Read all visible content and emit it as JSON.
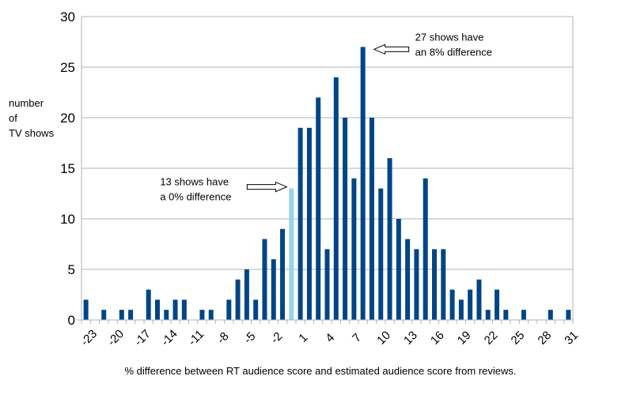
{
  "chart_data": {
    "type": "bar",
    "title": "",
    "ylabel": [
      "number",
      "of",
      "TV shows"
    ],
    "xlabel": "% difference between RT audience score and estimated audience score from reviews.",
    "ylim": [
      0,
      30
    ],
    "yticks": [
      0,
      5,
      10,
      15,
      20,
      25,
      30
    ],
    "grid": true,
    "x": [
      -23,
      -22,
      -21,
      -20,
      -19,
      -18,
      -17,
      -16,
      -15,
      -14,
      -13,
      -12,
      -11,
      -10,
      -9,
      -8,
      -7,
      -6,
      -5,
      -4,
      -3,
      -2,
      -1,
      0,
      1,
      2,
      3,
      4,
      5,
      6,
      7,
      8,
      9,
      10,
      11,
      12,
      13,
      14,
      15,
      16,
      17,
      18,
      19,
      20,
      21,
      22,
      23,
      24,
      25,
      26,
      27,
      28,
      29,
      30,
      31
    ],
    "xtick_labels": [
      "-23",
      "-20",
      "-17",
      "-14",
      "-11",
      "-8",
      "-5",
      "-2",
      "1",
      "4",
      "7",
      "10",
      "13",
      "16",
      "19",
      "22",
      "25",
      "28",
      "31"
    ],
    "values": [
      2,
      0,
      1,
      0,
      1,
      1,
      0,
      3,
      2,
      1,
      2,
      2,
      0,
      1,
      1,
      0,
      2,
      4,
      5,
      2,
      8,
      6,
      9,
      13,
      19,
      19,
      22,
      7,
      24,
      20,
      14,
      27,
      20,
      13,
      16,
      10,
      8,
      7,
      14,
      7,
      7,
      3,
      2,
      3,
      4,
      1,
      3,
      1,
      0,
      1,
      0,
      0,
      1,
      0,
      1
    ],
    "colors": {
      "bar": "#004586",
      "highlight": "#9bd3e8",
      "grid": "#b3b3b3",
      "axis": "#b3b3b3"
    },
    "highlight_x": 0,
    "annotations": [
      {
        "lines": [
          "27 shows have",
          "an 8% difference"
        ],
        "target_x": 8,
        "target_value": 27,
        "arrow": "left"
      },
      {
        "lines": [
          "13 shows have",
          "a 0% difference"
        ],
        "target_x": 0,
        "target_value": 13,
        "arrow": "right"
      }
    ]
  }
}
